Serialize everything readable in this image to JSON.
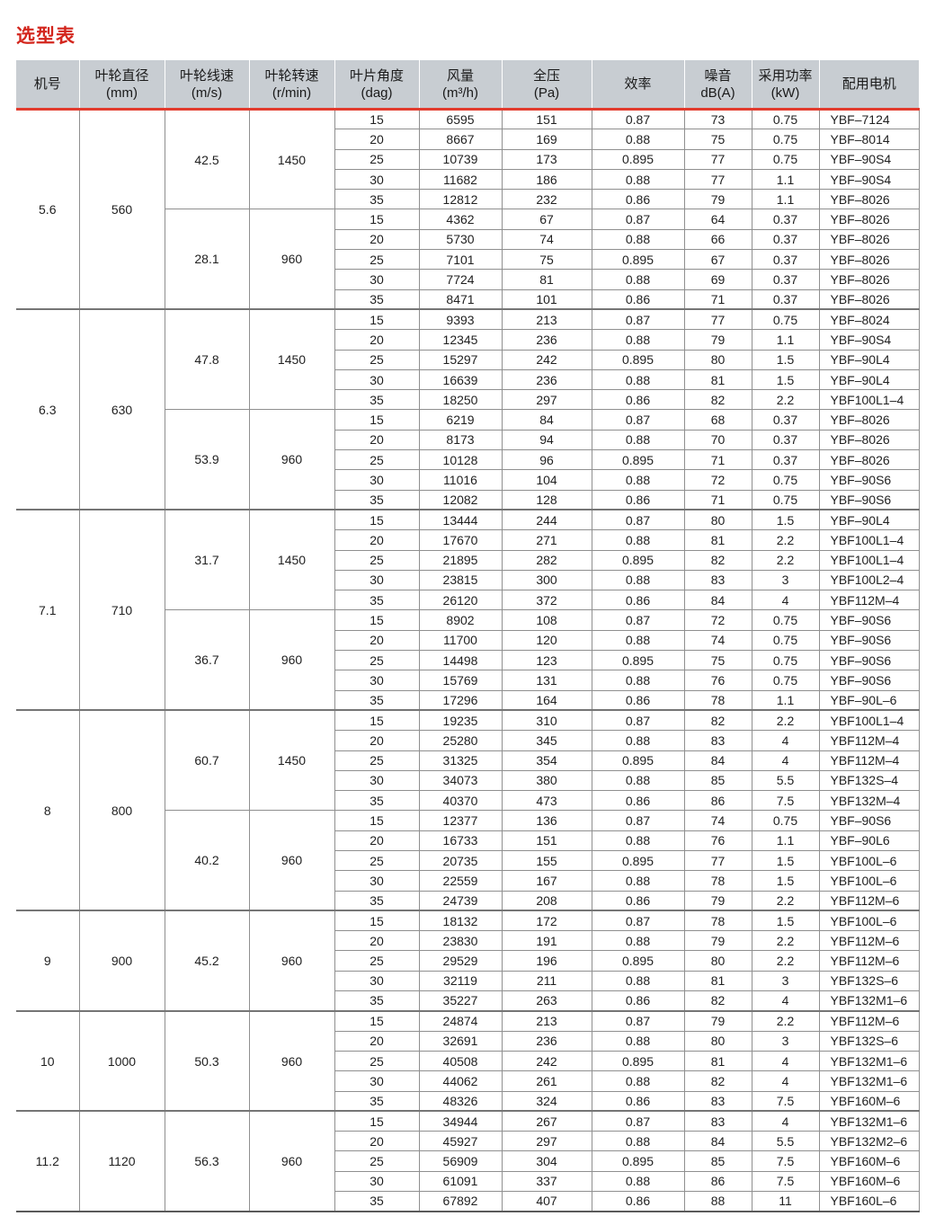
{
  "title": "选型表",
  "colors": {
    "title_red": "#d3261d",
    "rule_red": "#e23b2e",
    "header_bg": "#c8cdd2",
    "grid_line": "#8f8f8f"
  },
  "table": {
    "columns": [
      {
        "label": "机号",
        "sub": ""
      },
      {
        "label": "叶轮直径",
        "sub": "(mm)"
      },
      {
        "label": "叶轮线速",
        "sub": "(m/s)"
      },
      {
        "label": "叶轮转速",
        "sub": "(r/min)"
      },
      {
        "label": "叶片角度",
        "sub": "(dag)"
      },
      {
        "label": "风量",
        "sub": "(m³/h)"
      },
      {
        "label": "全压",
        "sub": "(Pa)"
      },
      {
        "label": "效率",
        "sub": ""
      },
      {
        "label": "噪音",
        "sub": "dB(A)"
      },
      {
        "label": "采用功率",
        "sub": "(kW)"
      },
      {
        "label": "配用电机",
        "sub": ""
      }
    ],
    "groups": [
      {
        "model": "5.6",
        "diameter": "560",
        "speeds": [
          {
            "line_speed": "42.5",
            "rpm": "1450",
            "rows": [
              [
                "15",
                "6595",
                "151",
                "0.87",
                "73",
                "0.75",
                "YBF–7124"
              ],
              [
                "20",
                "8667",
                "169",
                "0.88",
                "75",
                "0.75",
                "YBF–8014"
              ],
              [
                "25",
                "10739",
                "173",
                "0.895",
                "77",
                "0.75",
                "YBF–90S4"
              ],
              [
                "30",
                "11682",
                "186",
                "0.88",
                "77",
                "1.1",
                "YBF–90S4"
              ],
              [
                "35",
                "12812",
                "232",
                "0.86",
                "79",
                "1.1",
                "YBF–8026"
              ]
            ]
          },
          {
            "line_speed": "28.1",
            "rpm": "960",
            "rows": [
              [
                "15",
                "4362",
                "67",
                "0.87",
                "64",
                "0.37",
                "YBF–8026"
              ],
              [
                "20",
                "5730",
                "74",
                "0.88",
                "66",
                "0.37",
                "YBF–8026"
              ],
              [
                "25",
                "7101",
                "75",
                "0.895",
                "67",
                "0.37",
                "YBF–8026"
              ],
              [
                "30",
                "7724",
                "81",
                "0.88",
                "69",
                "0.37",
                "YBF–8026"
              ],
              [
                "35",
                "8471",
                "101",
                "0.86",
                "71",
                "0.37",
                "YBF–8026"
              ]
            ]
          }
        ]
      },
      {
        "model": "6.3",
        "diameter": "630",
        "speeds": [
          {
            "line_speed": "47.8",
            "rpm": "1450",
            "rows": [
              [
                "15",
                "9393",
                "213",
                "0.87",
                "77",
                "0.75",
                "YBF–8024"
              ],
              [
                "20",
                "12345",
                "236",
                "0.88",
                "79",
                "1.1",
                "YBF–90S4"
              ],
              [
                "25",
                "15297",
                "242",
                "0.895",
                "80",
                "1.5",
                "YBF–90L4"
              ],
              [
                "30",
                "16639",
                "236",
                "0.88",
                "81",
                "1.5",
                "YBF–90L4"
              ],
              [
                "35",
                "18250",
                "297",
                "0.86",
                "82",
                "2.2",
                "YBF100L1–4"
              ]
            ]
          },
          {
            "line_speed": "53.9",
            "rpm": "960",
            "rows": [
              [
                "15",
                "6219",
                "84",
                "0.87",
                "68",
                "0.37",
                "YBF–8026"
              ],
              [
                "20",
                "8173",
                "94",
                "0.88",
                "70",
                "0.37",
                "YBF–8026"
              ],
              [
                "25",
                "10128",
                "96",
                "0.895",
                "71",
                "0.37",
                "YBF–8026"
              ],
              [
                "30",
                "11016",
                "104",
                "0.88",
                "72",
                "0.75",
                "YBF–90S6"
              ],
              [
                "35",
                "12082",
                "128",
                "0.86",
                "71",
                "0.75",
                "YBF–90S6"
              ]
            ]
          }
        ]
      },
      {
        "model": "7.1",
        "diameter": "710",
        "speeds": [
          {
            "line_speed": "31.7",
            "rpm": "1450",
            "rows": [
              [
                "15",
                "13444",
                "244",
                "0.87",
                "80",
                "1.5",
                "YBF–90L4"
              ],
              [
                "20",
                "17670",
                "271",
                "0.88",
                "81",
                "2.2",
                "YBF100L1–4"
              ],
              [
                "25",
                "21895",
                "282",
                "0.895",
                "82",
                "2.2",
                "YBF100L1–4"
              ],
              [
                "30",
                "23815",
                "300",
                "0.88",
                "83",
                "3",
                "YBF100L2–4"
              ],
              [
                "35",
                "26120",
                "372",
                "0.86",
                "84",
                "4",
                "YBF112M–4"
              ]
            ]
          },
          {
            "line_speed": "36.7",
            "rpm": "960",
            "rows": [
              [
                "15",
                "8902",
                "108",
                "0.87",
                "72",
                "0.75",
                "YBF–90S6"
              ],
              [
                "20",
                "11700",
                "120",
                "0.88",
                "74",
                "0.75",
                "YBF–90S6"
              ],
              [
                "25",
                "14498",
                "123",
                "0.895",
                "75",
                "0.75",
                "YBF–90S6"
              ],
              [
                "30",
                "15769",
                "131",
                "0.88",
                "76",
                "0.75",
                "YBF–90S6"
              ],
              [
                "35",
                "17296",
                "164",
                "0.86",
                "78",
                "1.1",
                "YBF–90L–6"
              ]
            ]
          }
        ]
      },
      {
        "model": "8",
        "diameter": "800",
        "speeds": [
          {
            "line_speed": "60.7",
            "rpm": "1450",
            "rows": [
              [
                "15",
                "19235",
                "310",
                "0.87",
                "82",
                "2.2",
                "YBF100L1–4"
              ],
              [
                "20",
                "25280",
                "345",
                "0.88",
                "83",
                "4",
                "YBF112M–4"
              ],
              [
                "25",
                "31325",
                "354",
                "0.895",
                "84",
                "4",
                "YBF112M–4"
              ],
              [
                "30",
                "34073",
                "380",
                "0.88",
                "85",
                "5.5",
                "YBF132S–4"
              ],
              [
                "35",
                "40370",
                "473",
                "0.86",
                "86",
                "7.5",
                "YBF132M–4"
              ]
            ]
          },
          {
            "line_speed": "40.2",
            "rpm": "960",
            "rows": [
              [
                "15",
                "12377",
                "136",
                "0.87",
                "74",
                "0.75",
                "YBF–90S6"
              ],
              [
                "20",
                "16733",
                "151",
                "0.88",
                "76",
                "1.1",
                "YBF–90L6"
              ],
              [
                "25",
                "20735",
                "155",
                "0.895",
                "77",
                "1.5",
                "YBF100L–6"
              ],
              [
                "30",
                "22559",
                "167",
                "0.88",
                "78",
                "1.5",
                "YBF100L–6"
              ],
              [
                "35",
                "24739",
                "208",
                "0.86",
                "79",
                "2.2",
                "YBF112M–6"
              ]
            ]
          }
        ]
      },
      {
        "model": "9",
        "diameter": "900",
        "speeds": [
          {
            "line_speed": "45.2",
            "rpm": "960",
            "rows": [
              [
                "15",
                "18132",
                "172",
                "0.87",
                "78",
                "1.5",
                "YBF100L–6"
              ],
              [
                "20",
                "23830",
                "191",
                "0.88",
                "79",
                "2.2",
                "YBF112M–6"
              ],
              [
                "25",
                "29529",
                "196",
                "0.895",
                "80",
                "2.2",
                "YBF112M–6"
              ],
              [
                "30",
                "32119",
                "211",
                "0.88",
                "81",
                "3",
                "YBF132S–6"
              ],
              [
                "35",
                "35227",
                "263",
                "0.86",
                "82",
                "4",
                "YBF132M1–6"
              ]
            ]
          }
        ]
      },
      {
        "model": "10",
        "diameter": "1000",
        "speeds": [
          {
            "line_speed": "50.3",
            "rpm": "960",
            "rows": [
              [
                "15",
                "24874",
                "213",
                "0.87",
                "79",
                "2.2",
                "YBF112M–6"
              ],
              [
                "20",
                "32691",
                "236",
                "0.88",
                "80",
                "3",
                "YBF132S–6"
              ],
              [
                "25",
                "40508",
                "242",
                "0.895",
                "81",
                "4",
                "YBF132M1–6"
              ],
              [
                "30",
                "44062",
                "261",
                "0.88",
                "82",
                "4",
                "YBF132M1–6"
              ],
              [
                "35",
                "48326",
                "324",
                "0.86",
                "83",
                "7.5",
                "YBF160M–6"
              ]
            ]
          }
        ]
      },
      {
        "model": "11.2",
        "diameter": "1120",
        "speeds": [
          {
            "line_speed": "56.3",
            "rpm": "960",
            "rows": [
              [
                "15",
                "34944",
                "267",
                "0.87",
                "83",
                "4",
                "YBF132M1–6"
              ],
              [
                "20",
                "45927",
                "297",
                "0.88",
                "84",
                "5.5",
                "YBF132M2–6"
              ],
              [
                "25",
                "56909",
                "304",
                "0.895",
                "85",
                "7.5",
                "YBF160M–6"
              ],
              [
                "30",
                "61091",
                "337",
                "0.88",
                "86",
                "7.5",
                "YBF160M–6"
              ],
              [
                "35",
                "67892",
                "407",
                "0.86",
                "88",
                "11",
                "YBF160L–6"
              ]
            ]
          }
        ]
      }
    ]
  }
}
